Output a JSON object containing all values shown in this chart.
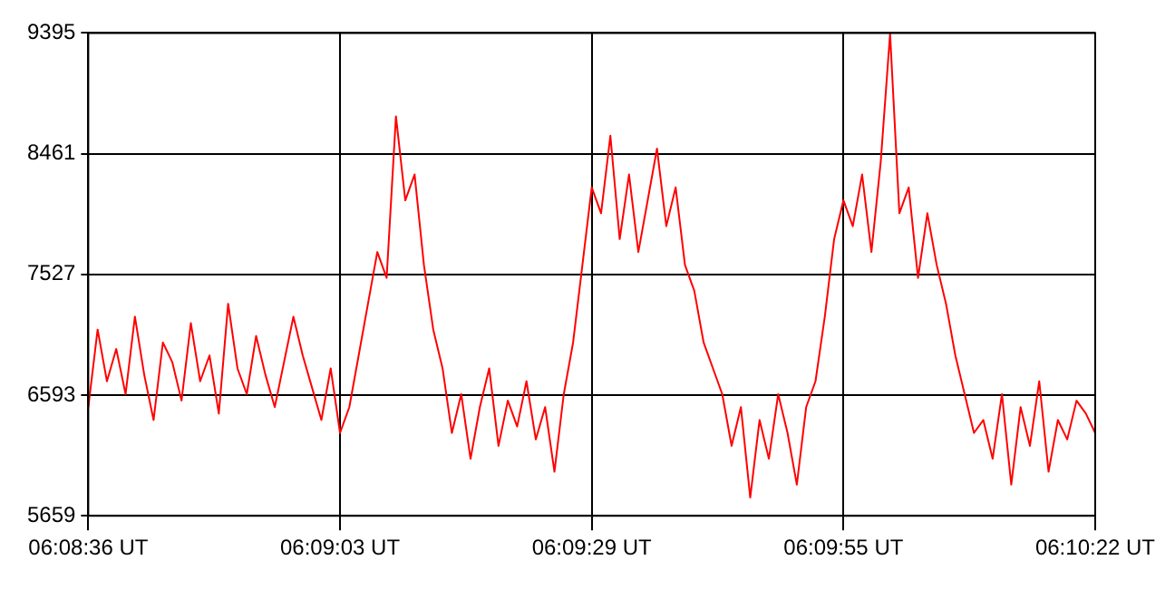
{
  "chart_data": {
    "type": "line",
    "marker": "none",
    "line_style": "solid",
    "grid": true,
    "legend": false,
    "ylim": [
      5659,
      9395
    ],
    "yticks": [
      5659,
      6593,
      7527,
      8461,
      9395
    ],
    "categories": [
      "06:08:36 UT",
      null,
      null,
      null,
      null,
      null,
      null,
      null,
      null,
      null,
      null,
      null,
      null,
      null,
      null,
      null,
      null,
      null,
      null,
      null,
      null,
      null,
      null,
      null,
      null,
      null,
      null,
      "06:09:03 UT",
      null,
      null,
      null,
      null,
      null,
      null,
      null,
      null,
      null,
      null,
      null,
      null,
      null,
      null,
      null,
      null,
      null,
      null,
      null,
      null,
      null,
      null,
      null,
      null,
      null,
      null,
      "06:09:29 UT",
      null,
      null,
      null,
      null,
      null,
      null,
      null,
      null,
      null,
      null,
      null,
      null,
      null,
      null,
      null,
      null,
      null,
      null,
      null,
      null,
      null,
      null,
      null,
      null,
      null,
      null,
      "06:09:55 UT",
      null,
      null,
      null,
      null,
      null,
      null,
      null,
      null,
      null,
      null,
      null,
      null,
      null,
      null,
      null,
      null,
      null,
      null,
      null,
      null,
      null,
      null,
      null,
      null,
      null,
      null,
      "06:10:22 UT"
    ],
    "series": [
      {
        "color": "#ff0000",
        "values": [
          6500,
          7100,
          6700,
          6950,
          6600,
          7200,
          6750,
          6400,
          7000,
          6850,
          6550,
          7150,
          6700,
          6900,
          6450,
          7300,
          6800,
          6600,
          7050,
          6750,
          6500,
          6850,
          7200,
          6900,
          6650,
          6400,
          6800,
          6300,
          6500,
          6900,
          7300,
          7700,
          7500,
          8750,
          8100,
          8300,
          7600,
          7100,
          6800,
          6300,
          6600,
          6100,
          6500,
          6800,
          6200,
          6550,
          6350,
          6700,
          6250,
          6500,
          6000,
          6600,
          7000,
          7600,
          8200,
          8000,
          8600,
          7800,
          8300,
          7700,
          8100,
          8500,
          7900,
          8200,
          7600,
          7400,
          7000,
          6800,
          6600,
          6200,
          6500,
          5800,
          6400,
          6100,
          6600,
          6300,
          5900,
          6500,
          6700,
          7200,
          7800,
          8100,
          7900,
          8300,
          7700,
          8400,
          9390,
          8000,
          8200,
          7500,
          8000,
          7600,
          7300,
          6900,
          6600,
          6300,
          6400,
          6100,
          6600,
          5900,
          6500,
          6200,
          6700,
          6000,
          6400,
          6250,
          6550,
          6450,
          6300
        ]
      }
    ]
  }
}
